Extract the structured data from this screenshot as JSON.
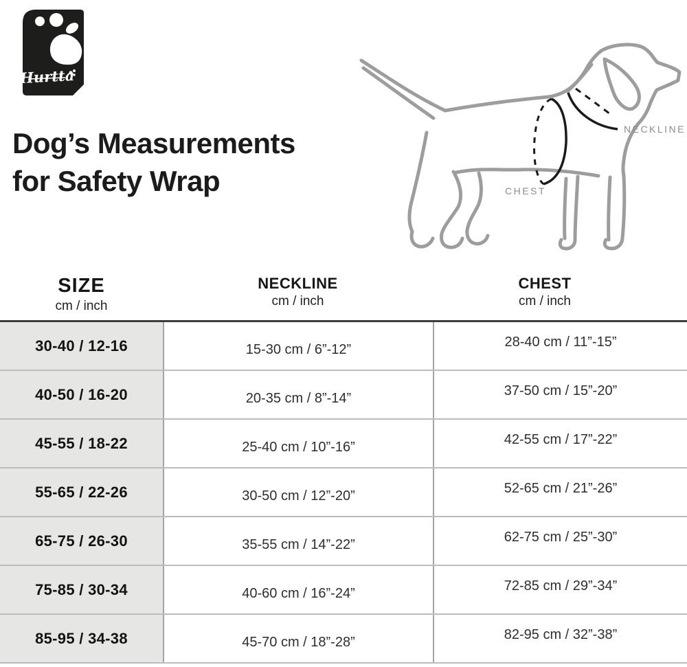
{
  "logo": {
    "brand": "Hurtta",
    "icon": "paw-print-icon",
    "bg_color": "#1d1d1b",
    "fg_color": "#ffffff"
  },
  "title": {
    "line1": "Dog’s Measurements",
    "line2": "for Safety Wrap"
  },
  "diagram": {
    "description": "line drawing of dog with measurement bands",
    "neckline_label": "NECKLINE",
    "chest_label": "CHEST",
    "line_color": "#9d9d9d",
    "mark_color": "#1a1a1a",
    "label_color": "#8d8d8d"
  },
  "table": {
    "headers": {
      "size": {
        "label": "SIZE",
        "unit": "cm / inch"
      },
      "neckline": {
        "label": "NECKLINE",
        "unit": "cm / inch"
      },
      "chest": {
        "label": "CHEST",
        "unit": "cm / inch"
      }
    },
    "rows": [
      {
        "size": "30-40 / 12-16",
        "neckline": "15-30 cm / 6”-12”",
        "chest": "28-40 cm / 11”-15”"
      },
      {
        "size": "40-50 / 16-20",
        "neckline": "20-35 cm / 8”-14”",
        "chest": "37-50 cm / 15”-20”"
      },
      {
        "size": "45-55 / 18-22",
        "neckline": "25-40 cm / 10”-16”",
        "chest": "42-55 cm / 17”-22”"
      },
      {
        "size": "55-65 / 22-26",
        "neckline": "30-50 cm / 12”-20”",
        "chest": "52-65 cm / 21”-26”"
      },
      {
        "size": "65-75 / 26-30",
        "neckline": "35-55 cm / 14”-22”",
        "chest": "62-75 cm / 25”-30”"
      },
      {
        "size": "75-85 / 30-34",
        "neckline": "40-60 cm / 16”-24”",
        "chest": "72-85 cm / 29”-34”"
      },
      {
        "size": "85-95 / 34-38",
        "neckline": "45-70 cm / 18”-28”",
        "chest": "82-95 cm / 32”-38”"
      }
    ],
    "style": {
      "size_col_bg": "#e6e6e4",
      "top_border": "#3c3c3c",
      "row_border": "#bcbcbc",
      "col_border": "#a3a3a3"
    }
  }
}
